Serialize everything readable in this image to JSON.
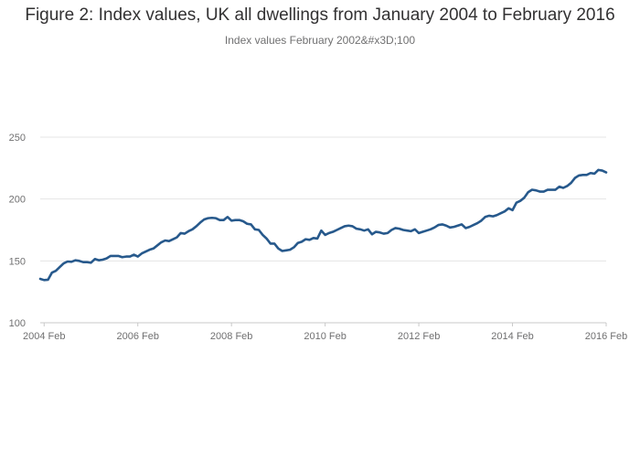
{
  "chart_data": {
    "type": "line",
    "title": "Figure 2: Index values, UK all dwellings from January 2004 to February 2016",
    "subtitle": "Index values February 2002&#x3D;100",
    "xlabel": "",
    "ylabel": "",
    "x_range": [
      "2004-01",
      "2016-02"
    ],
    "ylim": [
      100,
      250
    ],
    "grid": true,
    "x_ticks": [
      "2004 Feb",
      "2006 Feb",
      "2008 Feb",
      "2010 Feb",
      "2012 Feb",
      "2014 Feb",
      "2016 Feb"
    ],
    "y_ticks": [
      "100",
      "150",
      "200",
      "250"
    ],
    "series": [
      {
        "color": "#27598c",
        "points": [
          [
            "2004-01",
            135.5
          ],
          [
            "2004-02",
            134.5
          ],
          [
            "2004-03",
            134.8
          ],
          [
            "2004-04",
            140.5
          ],
          [
            "2004-05",
            142.0
          ],
          [
            "2004-06",
            145.0
          ],
          [
            "2004-07",
            148.0
          ],
          [
            "2004-08",
            149.5
          ],
          [
            "2004-09",
            149.3
          ],
          [
            "2004-10",
            150.5
          ],
          [
            "2004-11",
            150.0
          ],
          [
            "2004-12",
            149.0
          ],
          [
            "2005-01",
            149.0
          ],
          [
            "2005-02",
            148.5
          ],
          [
            "2005-03",
            151.5
          ],
          [
            "2005-04",
            150.5
          ],
          [
            "2005-05",
            151.0
          ],
          [
            "2005-06",
            152.0
          ],
          [
            "2005-07",
            154.0
          ],
          [
            "2005-08",
            154.0
          ],
          [
            "2005-09",
            154.0
          ],
          [
            "2005-10",
            153.0
          ],
          [
            "2005-11",
            153.5
          ],
          [
            "2005-12",
            153.5
          ],
          [
            "2006-01",
            155.0
          ],
          [
            "2006-02",
            153.5
          ],
          [
            "2006-03",
            156.0
          ],
          [
            "2006-04",
            157.5
          ],
          [
            "2006-05",
            159.0
          ],
          [
            "2006-06",
            160.0
          ],
          [
            "2006-07",
            162.5
          ],
          [
            "2006-08",
            165.0
          ],
          [
            "2006-09",
            166.5
          ],
          [
            "2006-10",
            166.0
          ],
          [
            "2006-11",
            167.5
          ],
          [
            "2006-12",
            169.0
          ],
          [
            "2007-01",
            172.5
          ],
          [
            "2007-02",
            172.0
          ],
          [
            "2007-03",
            174.0
          ],
          [
            "2007-04",
            175.5
          ],
          [
            "2007-05",
            178.0
          ],
          [
            "2007-06",
            181.0
          ],
          [
            "2007-07",
            183.5
          ],
          [
            "2007-08",
            184.5
          ],
          [
            "2007-09",
            184.8
          ],
          [
            "2007-10",
            184.5
          ],
          [
            "2007-11",
            183.0
          ],
          [
            "2007-12",
            183.0
          ],
          [
            "2008-01",
            185.5
          ],
          [
            "2008-02",
            182.5
          ],
          [
            "2008-03",
            183.0
          ],
          [
            "2008-04",
            183.0
          ],
          [
            "2008-05",
            182.0
          ],
          [
            "2008-06",
            180.0
          ],
          [
            "2008-07",
            179.5
          ],
          [
            "2008-08",
            175.5
          ],
          [
            "2008-09",
            175.0
          ],
          [
            "2008-10",
            171.0
          ],
          [
            "2008-11",
            168.0
          ],
          [
            "2008-12",
            164.0
          ],
          [
            "2009-01",
            164.0
          ],
          [
            "2009-02",
            160.0
          ],
          [
            "2009-03",
            158.0
          ],
          [
            "2009-04",
            158.5
          ],
          [
            "2009-05",
            159.0
          ],
          [
            "2009-06",
            161.0
          ],
          [
            "2009-07",
            164.5
          ],
          [
            "2009-08",
            165.5
          ],
          [
            "2009-09",
            167.5
          ],
          [
            "2009-10",
            167.0
          ],
          [
            "2009-11",
            168.5
          ],
          [
            "2009-12",
            168.0
          ],
          [
            "2010-01",
            174.5
          ],
          [
            "2010-02",
            171.0
          ],
          [
            "2010-03",
            172.5
          ],
          [
            "2010-04",
            173.5
          ],
          [
            "2010-05",
            175.0
          ],
          [
            "2010-06",
            176.5
          ],
          [
            "2010-07",
            178.0
          ],
          [
            "2010-08",
            178.5
          ],
          [
            "2010-09",
            178.0
          ],
          [
            "2010-10",
            176.0
          ],
          [
            "2010-11",
            175.5
          ],
          [
            "2010-12",
            174.5
          ],
          [
            "2011-01",
            175.5
          ],
          [
            "2011-02",
            171.5
          ],
          [
            "2011-03",
            173.5
          ],
          [
            "2011-04",
            173.0
          ],
          [
            "2011-05",
            172.0
          ],
          [
            "2011-06",
            172.5
          ],
          [
            "2011-07",
            175.0
          ],
          [
            "2011-08",
            176.5
          ],
          [
            "2011-09",
            176.0
          ],
          [
            "2011-10",
            175.0
          ],
          [
            "2011-11",
            174.5
          ],
          [
            "2011-12",
            174.0
          ],
          [
            "2012-01",
            175.5
          ],
          [
            "2012-02",
            172.5
          ],
          [
            "2012-03",
            173.5
          ],
          [
            "2012-04",
            174.5
          ],
          [
            "2012-05",
            175.5
          ],
          [
            "2012-06",
            177.0
          ],
          [
            "2012-07",
            179.0
          ],
          [
            "2012-08",
            179.5
          ],
          [
            "2012-09",
            178.5
          ],
          [
            "2012-10",
            177.0
          ],
          [
            "2012-11",
            177.5
          ],
          [
            "2012-12",
            178.5
          ],
          [
            "2013-01",
            179.5
          ],
          [
            "2013-02",
            176.5
          ],
          [
            "2013-03",
            177.5
          ],
          [
            "2013-04",
            179.0
          ],
          [
            "2013-05",
            180.5
          ],
          [
            "2013-06",
            182.5
          ],
          [
            "2013-07",
            185.5
          ],
          [
            "2013-08",
            186.5
          ],
          [
            "2013-09",
            186.0
          ],
          [
            "2013-10",
            187.0
          ],
          [
            "2013-11",
            188.5
          ],
          [
            "2013-12",
            190.0
          ],
          [
            "2014-01",
            192.5
          ],
          [
            "2014-02",
            191.0
          ],
          [
            "2014-03",
            197.0
          ],
          [
            "2014-04",
            198.5
          ],
          [
            "2014-05",
            201.0
          ],
          [
            "2014-06",
            205.5
          ],
          [
            "2014-07",
            207.5
          ],
          [
            "2014-08",
            207.0
          ],
          [
            "2014-09",
            206.0
          ],
          [
            "2014-10",
            206.0
          ],
          [
            "2014-11",
            207.5
          ],
          [
            "2014-12",
            207.5
          ],
          [
            "2015-01",
            207.5
          ],
          [
            "2015-02",
            210.0
          ],
          [
            "2015-03",
            209.0
          ],
          [
            "2015-04",
            210.5
          ],
          [
            "2015-05",
            213.0
          ],
          [
            "2015-06",
            217.0
          ],
          [
            "2015-07",
            219.0
          ],
          [
            "2015-08",
            219.5
          ],
          [
            "2015-09",
            219.5
          ],
          [
            "2015-10",
            221.0
          ],
          [
            "2015-11",
            220.5
          ],
          [
            "2015-12",
            223.5
          ],
          [
            "2016-01",
            223.0
          ],
          [
            "2016-02",
            221.5
          ]
        ]
      }
    ]
  }
}
